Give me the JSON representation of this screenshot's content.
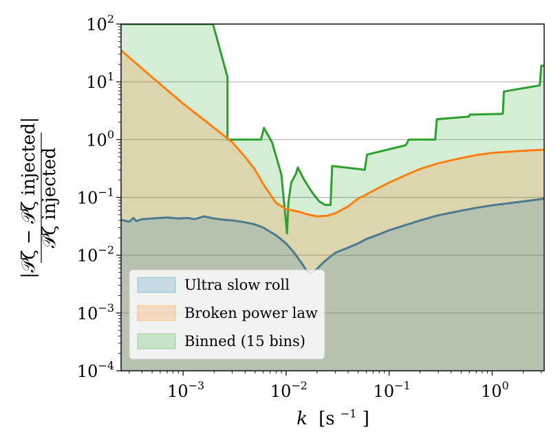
{
  "chart_data": {
    "type": "area",
    "xscale": "log",
    "yscale": "log",
    "xlim": [
      0.00025,
      3.2
    ],
    "ylim": [
      0.0001,
      100
    ],
    "xlabel": {
      "base": "k",
      "unit_prefix": "[s",
      "unit_exp": "−1",
      "unit_suffix": "]"
    },
    "ylabel": {
      "numerator": "|𝒫ζ − 𝒫ζ injected|",
      "denominator": "𝒫ζ injected"
    },
    "xticks": [
      {
        "value": 0.001,
        "base": "10",
        "exp": "−3"
      },
      {
        "value": 0.01,
        "base": "10",
        "exp": "−2"
      },
      {
        "value": 0.1,
        "base": "10",
        "exp": "−1"
      },
      {
        "value": 1,
        "base": "10",
        "exp": "0"
      }
    ],
    "yticks": [
      {
        "value": 0.0001,
        "base": "10",
        "exp": "−4"
      },
      {
        "value": 0.001,
        "base": "10",
        "exp": "−3"
      },
      {
        "value": 0.01,
        "base": "10",
        "exp": "−2"
      },
      {
        "value": 0.1,
        "base": "10",
        "exp": "−1"
      },
      {
        "value": 1,
        "base": "10",
        "exp": "0"
      },
      {
        "value": 10,
        "base": "10",
        "exp": "1"
      },
      {
        "value": 100,
        "base": "10",
        "exp": "2"
      }
    ],
    "hlines": [
      10,
      1,
      0.1,
      0.01,
      0.001
    ],
    "legend_position": "lower-left",
    "series": [
      {
        "name": "Binned (15 bins)",
        "line_color": "#2ca02c",
        "fill_color": "#2ca02c",
        "x": [
          0.00025,
          0.00195,
          0.0027,
          0.0027,
          0.0057,
          0.0061,
          0.0073,
          0.009,
          0.0102,
          0.0105,
          0.0112,
          0.0125,
          0.013,
          0.015,
          0.018,
          0.021,
          0.024,
          0.026,
          0.027,
          0.028,
          0.058,
          0.061,
          0.145,
          0.155,
          0.28,
          0.29,
          0.595,
          0.605,
          1.27,
          1.3,
          2.9,
          3.0,
          3.2
        ],
        "y": [
          100,
          100,
          12.0,
          1.0,
          1.0,
          1.6,
          0.9,
          0.25,
          0.024,
          0.08,
          0.18,
          0.26,
          0.33,
          0.2,
          0.12,
          0.085,
          0.074,
          0.074,
          0.074,
          0.35,
          0.3,
          0.55,
          0.8,
          1.0,
          1.0,
          2.25,
          2.5,
          2.7,
          2.8,
          6.8,
          8.7,
          19.0,
          19.0
        ]
      },
      {
        "name": "Broken power law",
        "line_color": "#ff7f0e",
        "fill_color": "#ff7f0e",
        "x": [
          0.00025,
          0.0005,
          0.001,
          0.002,
          0.003,
          0.004,
          0.005,
          0.006,
          0.008,
          0.01,
          0.013,
          0.016,
          0.02,
          0.025,
          0.03,
          0.04,
          0.05,
          0.07,
          0.1,
          0.15,
          0.2,
          0.3,
          0.5,
          0.7,
          1.0,
          2.0,
          3.2
        ],
        "y": [
          35,
          12,
          4.2,
          1.6,
          0.9,
          0.5,
          0.3,
          0.17,
          0.08,
          0.063,
          0.057,
          0.051,
          0.047,
          0.048,
          0.053,
          0.07,
          0.095,
          0.13,
          0.18,
          0.25,
          0.31,
          0.39,
          0.48,
          0.54,
          0.59,
          0.64,
          0.67
        ]
      },
      {
        "name": "Ultra slow roll",
        "line_color": "#4a7a90",
        "fill_color": "#1f77b4",
        "x": [
          0.00025,
          0.0003,
          0.00033,
          0.00035,
          0.0004,
          0.0005,
          0.0007,
          0.0009,
          0.0011,
          0.0013,
          0.0016,
          0.002,
          0.0025,
          0.003,
          0.004,
          0.005,
          0.006,
          0.008,
          0.01,
          0.012,
          0.014,
          0.016,
          0.018,
          0.02,
          0.023,
          0.027,
          0.03,
          0.04,
          0.05,
          0.06,
          0.08,
          0.1,
          0.15,
          0.2,
          0.3,
          0.5,
          0.7,
          1.0,
          2.0,
          3.2
        ],
        "y": [
          0.041,
          0.038,
          0.044,
          0.039,
          0.042,
          0.043,
          0.045,
          0.043,
          0.044,
          0.042,
          0.047,
          0.043,
          0.041,
          0.04,
          0.037,
          0.034,
          0.03,
          0.022,
          0.016,
          0.011,
          0.0075,
          0.0052,
          0.005,
          0.0058,
          0.0075,
          0.0095,
          0.011,
          0.0135,
          0.016,
          0.019,
          0.023,
          0.027,
          0.034,
          0.04,
          0.049,
          0.059,
          0.066,
          0.073,
          0.085,
          0.095
        ]
      }
    ],
    "legend": [
      {
        "label": "Ultra slow roll",
        "color": "#1f77b4"
      },
      {
        "label": "Broken power law",
        "color": "#ff7f0e"
      },
      {
        "label": "Binned (15 bins)",
        "color": "#2ca02c"
      }
    ]
  }
}
